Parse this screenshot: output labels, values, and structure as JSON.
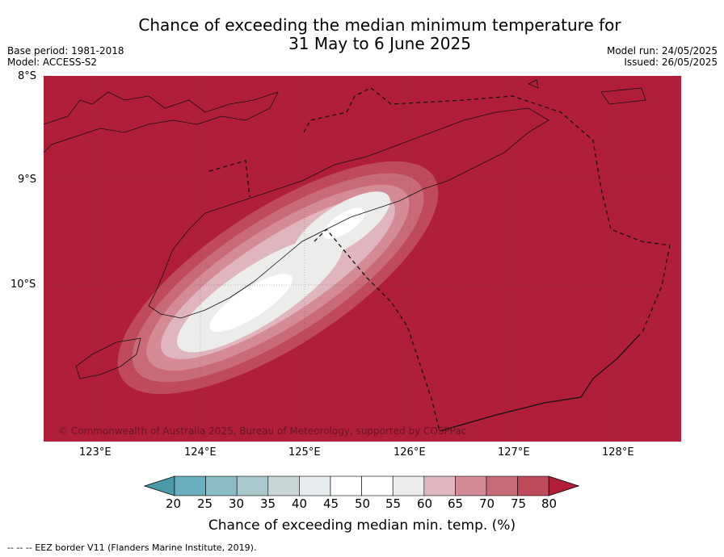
{
  "title": {
    "line1": "Chance of exceeding the median minimum temperature for",
    "line2": "31 May to 6 June 2025"
  },
  "meta_left": {
    "base_period": "Base period: 1981-2018",
    "model": "Model: ACCESS-S2"
  },
  "meta_right": {
    "model_run": "Model run: 24/05/2025",
    "issued": "Issued: 26/05/2025"
  },
  "map": {
    "lat_labels": [
      "8°S",
      "9°S",
      "10°S"
    ],
    "lon_labels": [
      "123°E",
      "124°E",
      "125°E",
      "126°E",
      "127°E",
      "128°E"
    ],
    "background_color": "#b01e3a",
    "gridlines": true
  },
  "copyright": "© Commonwealth of Australia 2025, Bureau of Meteorology, supported by COSPPac",
  "colorbar": {
    "label": "Chance of exceeding median min. temp. (%)",
    "ticks": [
      "20",
      "25",
      "30",
      "35",
      "40",
      "45",
      "50",
      "55",
      "60",
      "65",
      "70",
      "75",
      "80"
    ],
    "colors": [
      "#4a9aa8",
      "#6aafbd",
      "#8bbcc6",
      "#a9c8cc",
      "#c9d6d6",
      "#e6eced",
      "#ffffff",
      "#ffffff",
      "#ececea",
      "#dfb6bd",
      "#d48b95",
      "#c96a78",
      "#bf4a5b",
      "#b01e3a"
    ]
  },
  "footnote": "--  --  -- EEZ border V11 (Flanders Marine Institute, 2019)."
}
